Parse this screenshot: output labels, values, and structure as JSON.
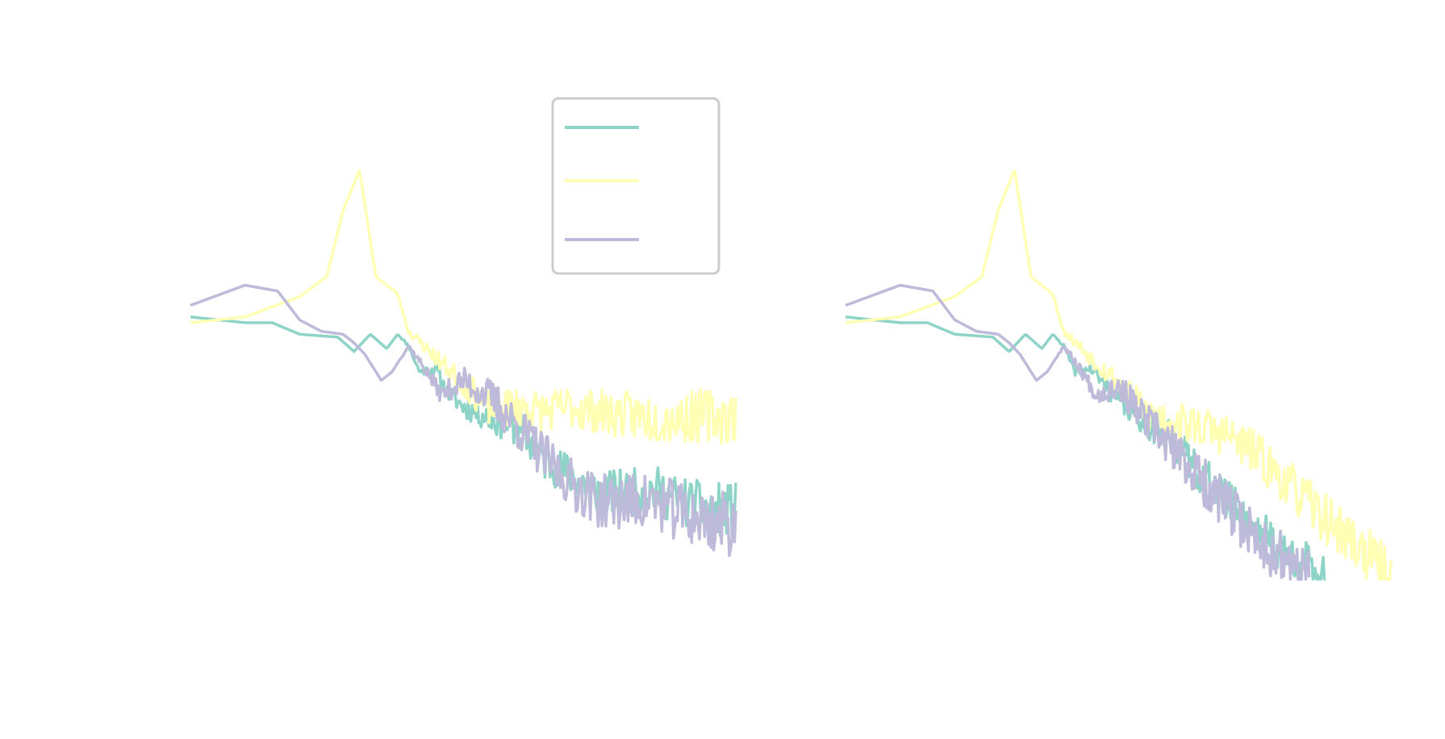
{
  "colors": {
    "series1": "#8dd3c7",
    "series2": "#ffffb3",
    "series3": "#bebada",
    "legend_border": "#cccccc"
  },
  "chart_data": [
    {
      "type": "line",
      "title": "",
      "xlabel": "",
      "ylabel": "",
      "xscale": "log",
      "yscale": "log",
      "grid": false,
      "axes_visible": false,
      "legend": {
        "visible": true,
        "placement": "upper-right",
        "labels_visible": false
      },
      "series": [
        {
          "color": "#8dd3c7",
          "anchors": [
            [
              0,
              0.91
            ],
            [
              0.1,
              0.89
            ],
            [
              0.15,
              0.89
            ],
            [
              0.2,
              0.85
            ],
            [
              0.27,
              0.84
            ],
            [
              0.3,
              0.79
            ],
            [
              0.33,
              0.85
            ],
            [
              0.36,
              0.8
            ],
            [
              0.38,
              0.85
            ],
            [
              0.4,
              0.81
            ],
            [
              0.42,
              0.72
            ],
            [
              0.45,
              0.73
            ],
            [
              0.47,
              0.65
            ],
            [
              0.5,
              0.6
            ],
            [
              0.55,
              0.56
            ],
            [
              0.6,
              0.53
            ],
            [
              0.65,
              0.41
            ],
            [
              0.7,
              0.36
            ],
            [
              0.75,
              0.3
            ],
            [
              0.8,
              0.3
            ],
            [
              0.85,
              0.31
            ],
            [
              0.9,
              0.27
            ],
            [
              0.95,
              0.24
            ],
            [
              1,
              0.24
            ]
          ],
          "noise_start": 0.38,
          "noise_amp": 0.05,
          "seed": 11
        },
        {
          "color": "#ffffb3",
          "anchors": [
            [
              0,
              0.89
            ],
            [
              0.1,
              0.91
            ],
            [
              0.2,
              0.98
            ],
            [
              0.25,
              1.05
            ],
            [
              0.28,
              1.28
            ],
            [
              0.31,
              1.42
            ],
            [
              0.34,
              1.05
            ],
            [
              0.38,
              0.99
            ],
            [
              0.4,
              0.86
            ],
            [
              0.45,
              0.77
            ],
            [
              0.5,
              0.68
            ],
            [
              0.55,
              0.59
            ],
            [
              0.6,
              0.6
            ],
            [
              0.65,
              0.58
            ],
            [
              0.7,
              0.6
            ],
            [
              0.75,
              0.58
            ],
            [
              0.8,
              0.57
            ],
            [
              0.85,
              0.56
            ],
            [
              0.9,
              0.56
            ],
            [
              0.95,
              0.57
            ],
            [
              1,
              0.56
            ]
          ],
          "noise_start": 0.36,
          "noise_amp": 0.05,
          "seed": 23
        },
        {
          "color": "#bebada",
          "anchors": [
            [
              0,
              0.95
            ],
            [
              0.1,
              1.02
            ],
            [
              0.16,
              1.0
            ],
            [
              0.2,
              0.9
            ],
            [
              0.24,
              0.86
            ],
            [
              0.28,
              0.85
            ],
            [
              0.3,
              0.82
            ],
            [
              0.32,
              0.78
            ],
            [
              0.35,
              0.69
            ],
            [
              0.37,
              0.72
            ],
            [
              0.4,
              0.81
            ],
            [
              0.43,
              0.73
            ],
            [
              0.46,
              0.64
            ],
            [
              0.5,
              0.69
            ],
            [
              0.55,
              0.63
            ],
            [
              0.6,
              0.53
            ],
            [
              0.65,
              0.42
            ],
            [
              0.7,
              0.33
            ],
            [
              0.75,
              0.27
            ],
            [
              0.8,
              0.27
            ],
            [
              0.85,
              0.27
            ],
            [
              0.9,
              0.23
            ],
            [
              0.95,
              0.2
            ],
            [
              1,
              0.19
            ]
          ],
          "noise_start": 0.38,
          "noise_amp": 0.06,
          "seed": 37
        }
      ]
    },
    {
      "type": "line",
      "title": "",
      "xlabel": "",
      "ylabel": "",
      "xscale": "log",
      "yscale": "log",
      "grid": false,
      "axes_visible": false,
      "legend": {
        "visible": false
      },
      "series": [
        {
          "color": "#8dd3c7",
          "anchors": [
            [
              0,
              0.91
            ],
            [
              0.1,
              0.89
            ],
            [
              0.15,
              0.89
            ],
            [
              0.2,
              0.85
            ],
            [
              0.27,
              0.84
            ],
            [
              0.3,
              0.79
            ],
            [
              0.33,
              0.85
            ],
            [
              0.36,
              0.8
            ],
            [
              0.38,
              0.85
            ],
            [
              0.4,
              0.81
            ],
            [
              0.42,
              0.72
            ],
            [
              0.45,
              0.73
            ],
            [
              0.5,
              0.62
            ],
            [
              0.55,
              0.55
            ],
            [
              0.6,
              0.48
            ],
            [
              0.65,
              0.37
            ],
            [
              0.7,
              0.27
            ],
            [
              0.75,
              0.18
            ],
            [
              0.8,
              0.1
            ],
            [
              0.85,
              0.04
            ],
            [
              0.88,
              0.0
            ]
          ],
          "noise_start": 0.38,
          "noise_amp": 0.05,
          "seed": 41
        },
        {
          "color": "#ffffb3",
          "anchors": [
            [
              0,
              0.89
            ],
            [
              0.1,
              0.91
            ],
            [
              0.2,
              0.98
            ],
            [
              0.25,
              1.05
            ],
            [
              0.28,
              1.28
            ],
            [
              0.31,
              1.42
            ],
            [
              0.34,
              1.05
            ],
            [
              0.38,
              0.99
            ],
            [
              0.4,
              0.86
            ],
            [
              0.45,
              0.77
            ],
            [
              0.5,
              0.68
            ],
            [
              0.55,
              0.58
            ],
            [
              0.6,
              0.55
            ],
            [
              0.65,
              0.53
            ],
            [
              0.7,
              0.5
            ],
            [
              0.75,
              0.44
            ],
            [
              0.8,
              0.35
            ],
            [
              0.85,
              0.26
            ],
            [
              0.9,
              0.18
            ],
            [
              0.95,
              0.1
            ],
            [
              1,
              0.0
            ]
          ],
          "noise_start": 0.36,
          "noise_amp": 0.05,
          "seed": 53
        },
        {
          "color": "#bebada",
          "anchors": [
            [
              0,
              0.95
            ],
            [
              0.1,
              1.02
            ],
            [
              0.16,
              1.0
            ],
            [
              0.2,
              0.9
            ],
            [
              0.24,
              0.86
            ],
            [
              0.28,
              0.85
            ],
            [
              0.3,
              0.82
            ],
            [
              0.32,
              0.78
            ],
            [
              0.35,
              0.69
            ],
            [
              0.37,
              0.72
            ],
            [
              0.4,
              0.81
            ],
            [
              0.43,
              0.73
            ],
            [
              0.46,
              0.64
            ],
            [
              0.5,
              0.67
            ],
            [
              0.55,
              0.55
            ],
            [
              0.6,
              0.45
            ],
            [
              0.65,
              0.35
            ],
            [
              0.7,
              0.25
            ],
            [
              0.75,
              0.15
            ],
            [
              0.8,
              0.07
            ],
            [
              0.85,
              0.0
            ]
          ],
          "noise_start": 0.38,
          "noise_amp": 0.06,
          "seed": 67
        }
      ]
    }
  ]
}
